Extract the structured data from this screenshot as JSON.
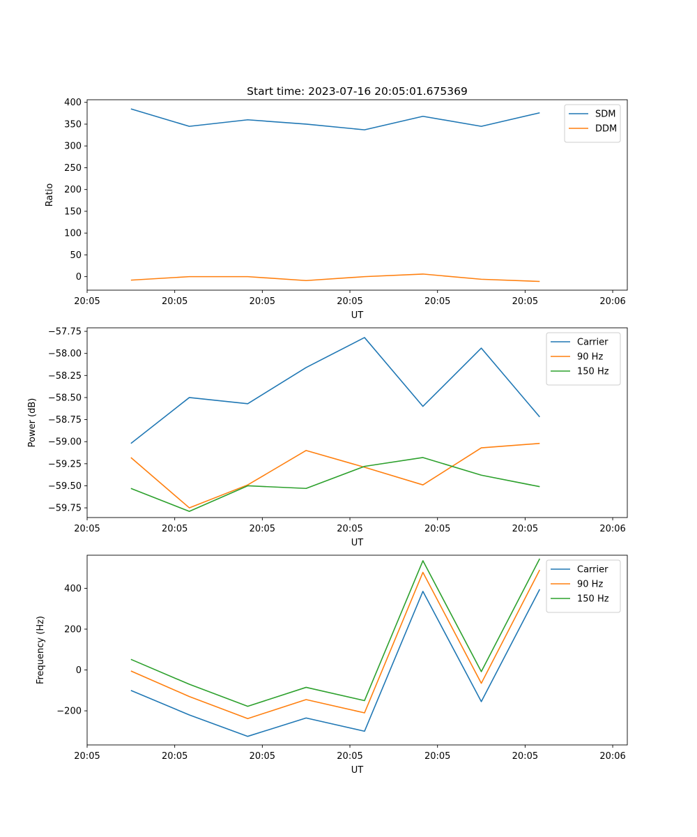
{
  "chart_data": [
    {
      "type": "line",
      "title": "Start time: 2023-07-16 20:05:01.675369",
      "xlabel": "UT",
      "ylabel": "Ratio",
      "x": [
        0,
        1,
        2,
        3,
        4,
        5,
        6,
        7
      ],
      "xlim": [
        -0.75,
        8.5
      ],
      "xticks": [
        -0.75,
        0.75,
        2.25,
        3.75,
        5.25,
        6.75,
        8.25
      ],
      "xtick_labels": [
        "20:05",
        "20:05",
        "20:05",
        "20:05",
        "20:05",
        "20:05",
        "20:06"
      ],
      "ylim": [
        -31,
        406
      ],
      "yticks": [
        0,
        50,
        100,
        150,
        200,
        250,
        300,
        350,
        400
      ],
      "ytick_labels": [
        "0",
        "50",
        "100",
        "150",
        "200",
        "250",
        "300",
        "350",
        "400"
      ],
      "legend_position": "upper-right",
      "series": [
        {
          "name": "SDM",
          "color": "#1f77b4",
          "values": [
            385,
            345,
            360,
            350,
            337,
            368,
            345,
            376
          ]
        },
        {
          "name": "DDM",
          "color": "#ff7f0e",
          "values": [
            -8,
            0,
            0,
            -9,
            0,
            6,
            -6,
            -11
          ]
        }
      ]
    },
    {
      "type": "line",
      "title": "",
      "xlabel": "UT",
      "ylabel": "Power (dB)",
      "x": [
        0,
        1,
        2,
        3,
        4,
        5,
        6,
        7
      ],
      "xlim": [
        -0.75,
        8.5
      ],
      "xticks": [
        -0.75,
        0.75,
        2.25,
        3.75,
        5.25,
        6.75,
        8.25
      ],
      "xtick_labels": [
        "20:05",
        "20:05",
        "20:05",
        "20:05",
        "20:05",
        "20:05",
        "20:06"
      ],
      "ylim": [
        -59.86,
        -57.71
      ],
      "yticks": [
        -59.75,
        -59.5,
        -59.25,
        -59.0,
        -58.75,
        -58.5,
        -58.25,
        -58.0,
        -57.75
      ],
      "ytick_labels": [
        "−59.75",
        "−59.50",
        "−59.25",
        "−59.00",
        "−58.75",
        "−58.50",
        "−58.25",
        "−58.00",
        "−57.75"
      ],
      "legend_position": "upper-right",
      "series": [
        {
          "name": "Carrier",
          "color": "#1f77b4",
          "values": [
            -59.02,
            -58.5,
            -58.57,
            -58.16,
            -57.82,
            -58.6,
            -57.94,
            -58.72
          ]
        },
        {
          "name": "90 Hz",
          "color": "#ff7f0e",
          "values": [
            -59.18,
            -59.75,
            -59.49,
            -59.1,
            -59.29,
            -59.49,
            -59.07,
            -59.02
          ]
        },
        {
          "name": "150 Hz",
          "color": "#2ca02c",
          "values": [
            -59.53,
            -59.79,
            -59.5,
            -59.53,
            -59.28,
            -59.18,
            -59.38,
            -59.51
          ]
        }
      ]
    },
    {
      "type": "line",
      "title": "",
      "xlabel": "UT",
      "ylabel": "Frequency (Hz)",
      "x": [
        0,
        1,
        2,
        3,
        4,
        5,
        6,
        7
      ],
      "xlim": [
        -0.75,
        8.5
      ],
      "xticks": [
        -0.75,
        0.75,
        2.25,
        3.75,
        5.25,
        6.75,
        8.25
      ],
      "xtick_labels": [
        "20:05",
        "20:05",
        "20:05",
        "20:05",
        "20:05",
        "20:05",
        "20:06"
      ],
      "ylim": [
        -367,
        562
      ],
      "yticks": [
        -200,
        0,
        200,
        400
      ],
      "ytick_labels": [
        "−200",
        "0",
        "200",
        "400"
      ],
      "legend_position": "upper-right",
      "series": [
        {
          "name": "Carrier",
          "color": "#1f77b4",
          "values": [
            -100,
            -220,
            -325,
            -235,
            -300,
            385,
            -155,
            395
          ]
        },
        {
          "name": "90 Hz",
          "color": "#ff7f0e",
          "values": [
            -5,
            -130,
            -238,
            -145,
            -210,
            478,
            -65,
            490
          ]
        },
        {
          "name": "150 Hz",
          "color": "#2ca02c",
          "values": [
            52,
            -70,
            -178,
            -85,
            -150,
            535,
            -8,
            545
          ]
        }
      ]
    }
  ]
}
